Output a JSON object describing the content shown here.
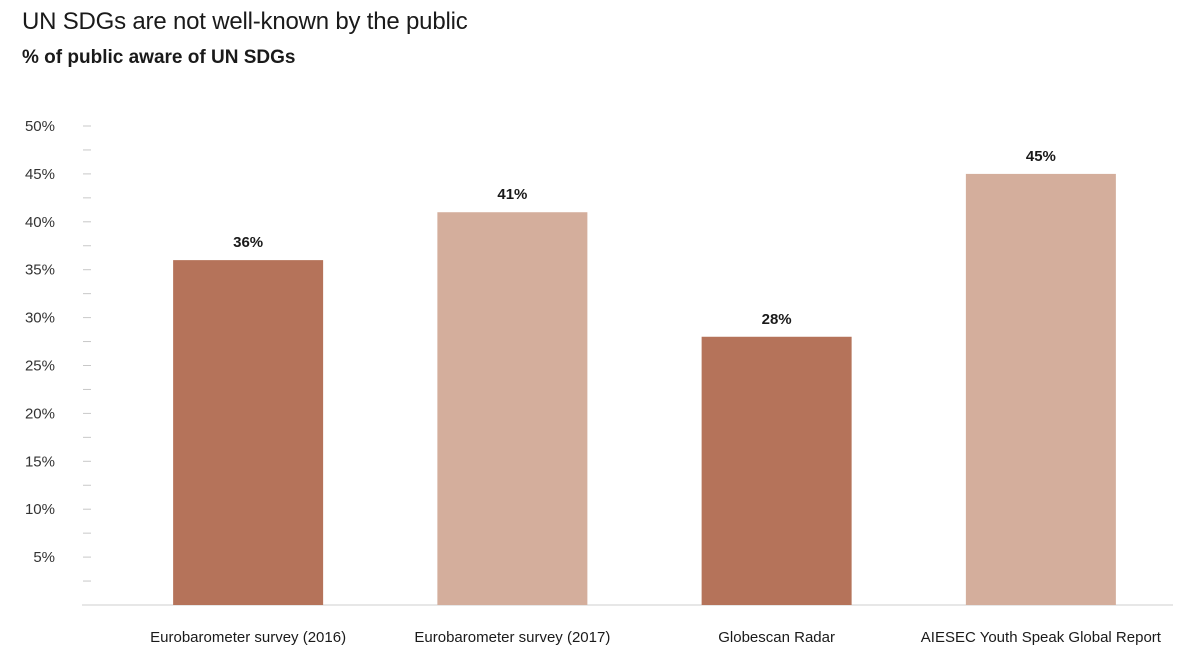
{
  "chart_data": {
    "type": "bar",
    "title": "UN SDGs are not well-known by the public",
    "subtitle": "% of public aware of UN SDGs",
    "categories": [
      "Eurobarometer survey (2016)",
      "Eurobarometer survey (2017)",
      "Globescan Radar",
      "AIESEC Youth Speak Global Report"
    ],
    "values": [
      36,
      41,
      28,
      45
    ],
    "value_labels": [
      "36%",
      "41%",
      "28%",
      "45%"
    ],
    "bar_colors": [
      "#b5735a",
      "#d4ae9c",
      "#b5735a",
      "#d4ae9c"
    ],
    "ylim": [
      0,
      50
    ],
    "yticks": [
      5,
      10,
      15,
      20,
      25,
      30,
      35,
      40,
      45,
      50
    ],
    "ytick_labels": [
      "5%",
      "10%",
      "15%",
      "20%",
      "25%",
      "30%",
      "35%",
      "40%",
      "45%",
      "50%"
    ],
    "grid": false
  }
}
